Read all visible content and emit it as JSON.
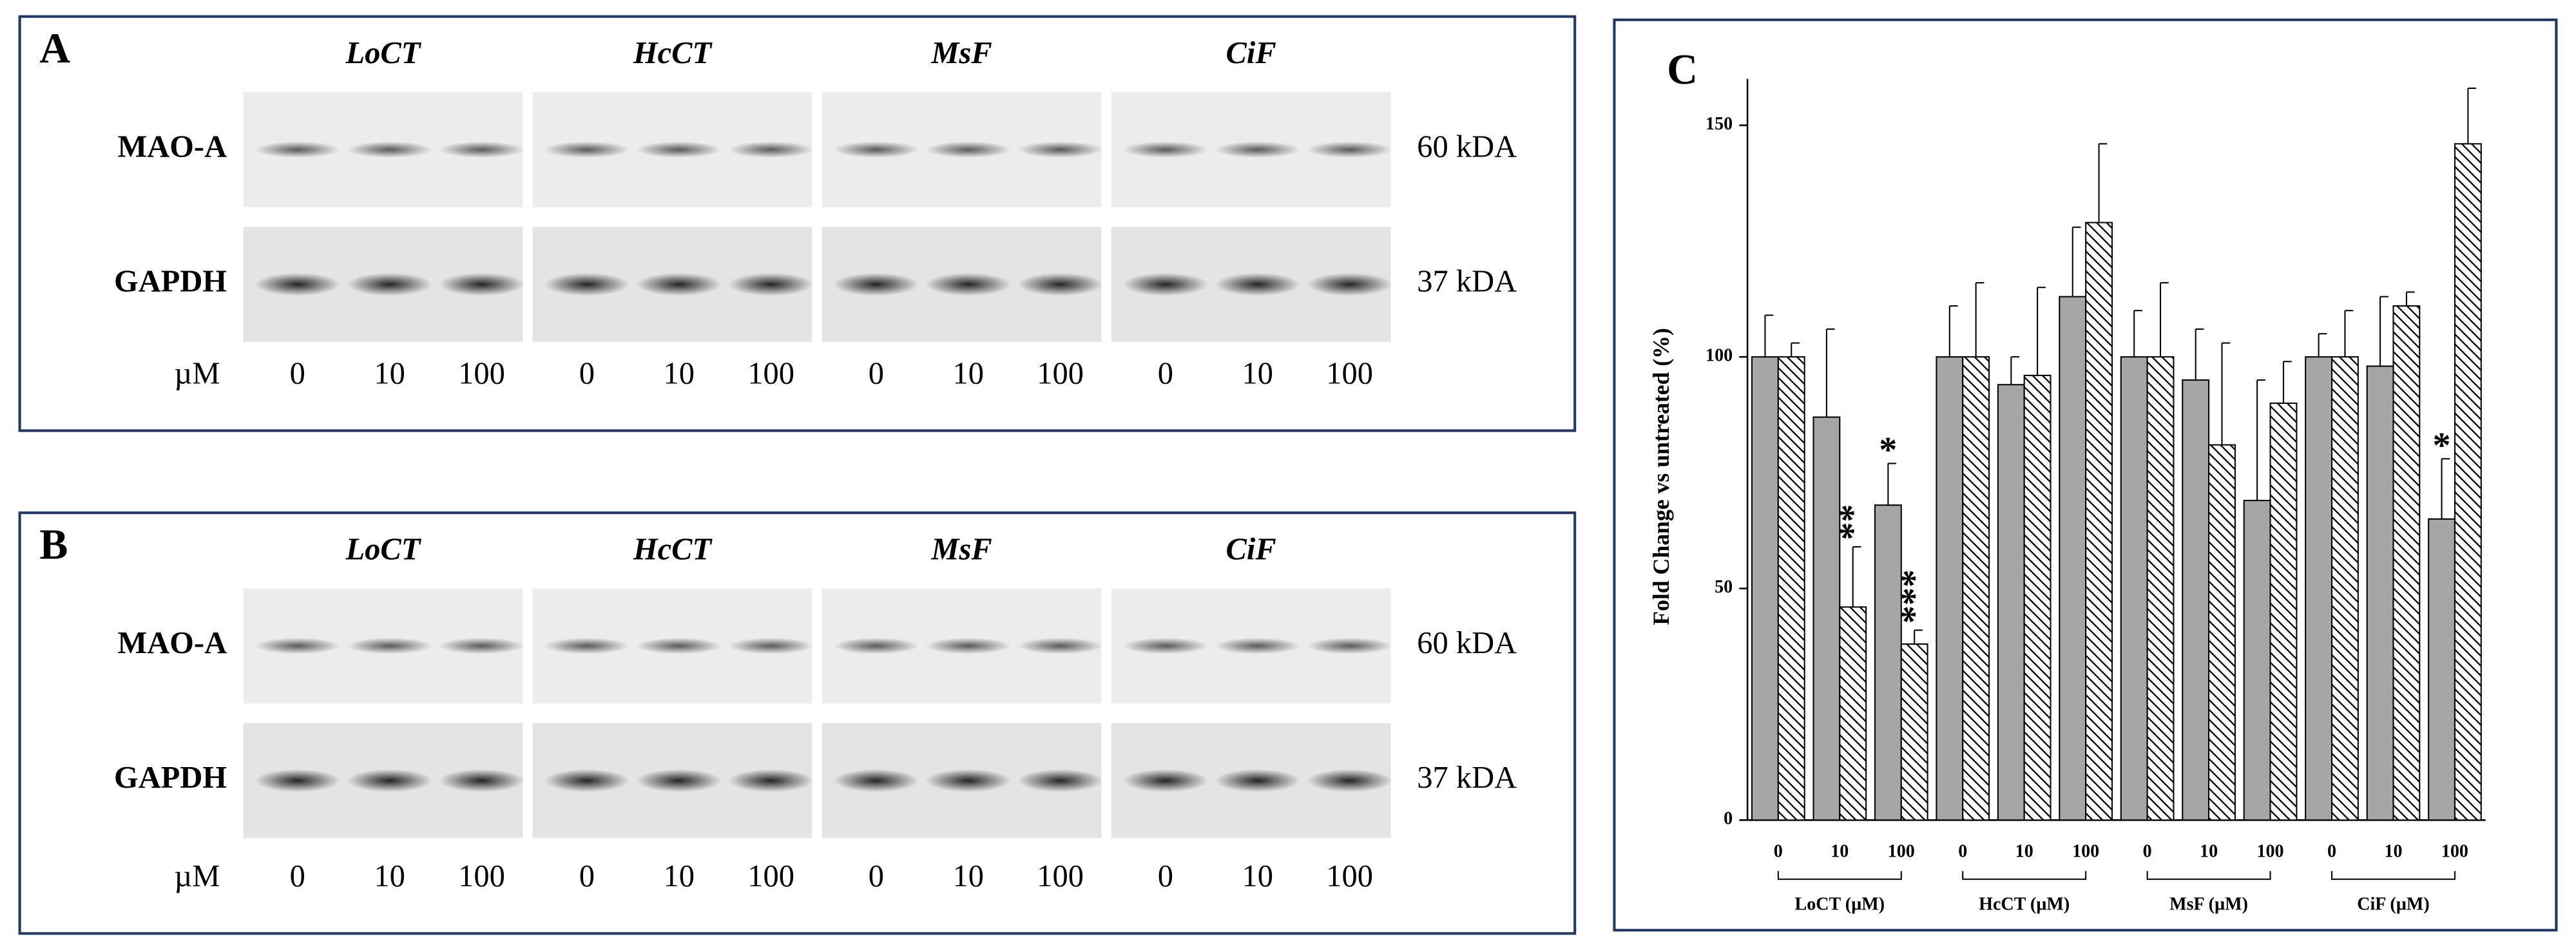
{
  "panels": [
    {
      "label": "A",
      "groups": [
        "LoCT",
        "HcCT",
        "MsF",
        "CiF"
      ],
      "rows": [
        {
          "name": "MAO-A",
          "size": "60 kDA"
        },
        {
          "name": "GAPDH",
          "size": "37 kDA"
        }
      ],
      "unit": "µM",
      "lanes": [
        "0",
        "10",
        "100"
      ]
    },
    {
      "label": "B",
      "groups": [
        "LoCT",
        "HcCT",
        "MsF",
        "CiF"
      ],
      "rows": [
        {
          "name": "MAO-A",
          "size": "60 kDA"
        },
        {
          "name": "GAPDH",
          "size": "37 kDA"
        }
      ],
      "unit": "µM",
      "lanes": [
        "0",
        "10",
        "100"
      ]
    }
  ],
  "chart_data": {
    "type": "bar",
    "panel_label": "C",
    "ylabel": "Fold Change vs untreated (%)",
    "categories": [
      "0",
      "10",
      "100",
      "0",
      "10",
      "100",
      "0",
      "10",
      "100",
      "0",
      "10",
      "100"
    ],
    "groups": [
      "LoCT (µM)",
      "HcCT (µM)",
      "MsF (µM)",
      "CiF (µM)"
    ],
    "series": [
      {
        "color": "#a6a6a6",
        "pattern": "solid",
        "values": [
          100,
          87,
          68,
          100,
          94,
          113,
          100,
          95,
          69,
          100,
          98,
          65
        ],
        "errors": [
          9,
          19,
          9,
          11,
          6,
          15,
          10,
          11,
          26,
          5,
          15,
          13
        ]
      },
      {
        "color": "#ffffff",
        "pattern": "hatch",
        "values": [
          100,
          46,
          38,
          100,
          96,
          129,
          100,
          81,
          90,
          100,
          111,
          146
        ],
        "errors": [
          3,
          13,
          3,
          16,
          19,
          17,
          16,
          22,
          9,
          10,
          3,
          12
        ]
      }
    ],
    "annotations": [
      {
        "text": "*",
        "series": 0,
        "index": 2
      },
      {
        "text": "**",
        "series": 1,
        "index": 1
      },
      {
        "text": "***",
        "series": 1,
        "index": 2
      },
      {
        "text": "*",
        "series": 0,
        "index": 11
      }
    ],
    "ylim": [
      0,
      160
    ],
    "yticks": [
      0,
      50,
      100,
      150
    ]
  }
}
